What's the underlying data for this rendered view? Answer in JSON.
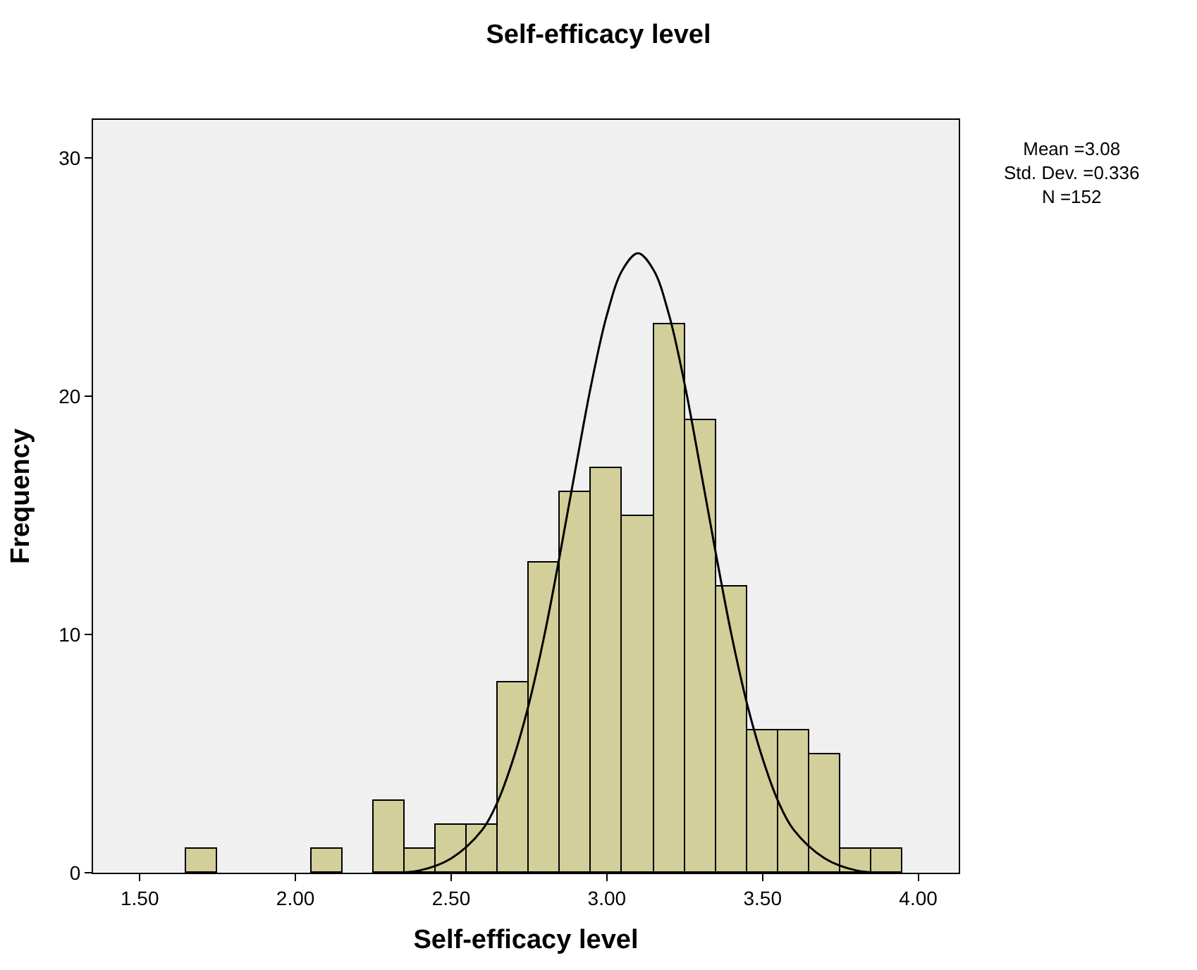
{
  "chart_data": {
    "type": "histogram",
    "title": "Self-efficacy level",
    "xlabel": "Self-efficacy level",
    "ylabel": "Frequency",
    "bins": [
      1.65,
      1.75,
      1.85,
      1.95,
      2.05,
      2.15,
      2.25,
      2.35,
      2.45,
      2.55,
      2.65,
      2.75,
      2.85,
      2.95,
      3.05,
      3.15,
      3.25,
      3.35,
      3.45,
      3.55,
      3.65,
      3.75,
      3.85,
      3.95
    ],
    "values": [
      1,
      0,
      0,
      0,
      1,
      0,
      3,
      1,
      2,
      2,
      8,
      13,
      16,
      17,
      15,
      23,
      19,
      12,
      6,
      6,
      5,
      1,
      1
    ],
    "color": "#d3cf9a",
    "series": [
      {
        "type": "line",
        "color": "#000000",
        "x": [
          2.3,
          2.4,
          2.5,
          2.6,
          2.65,
          2.7,
          2.75,
          2.8,
          2.85,
          2.9,
          2.95,
          3.0,
          3.05,
          3.1,
          3.15,
          3.2,
          3.25,
          3.3,
          3.35,
          3.4,
          3.45,
          3.5,
          3.55,
          3.6,
          3.7,
          3.8,
          3.9
        ],
        "values": [
          0.0,
          0.1,
          0.6,
          1.8,
          3.0,
          4.8,
          7.1,
          10.0,
          13.4,
          17.0,
          20.5,
          23.4,
          25.3,
          26.0,
          25.3,
          23.4,
          20.5,
          17.0,
          13.4,
          10.0,
          7.1,
          4.8,
          3.0,
          1.8,
          0.6,
          0.1,
          0.0
        ]
      }
    ],
    "xlim": [
      1.35,
      4.13
    ],
    "xticks": [
      {
        "value": 1.5,
        "label": "1.50"
      },
      {
        "value": 2.0,
        "label": "2.00"
      },
      {
        "value": 2.5,
        "label": "2.50"
      },
      {
        "value": 3.0,
        "label": "3.00"
      },
      {
        "value": 3.5,
        "label": "3.50"
      },
      {
        "value": 4.0,
        "label": "4.00"
      }
    ],
    "ylim": [
      0,
      31.6
    ],
    "yticks": [
      0,
      10,
      20,
      30
    ],
    "grid": false,
    "annotations": [
      "Mean =3.08\nStd. Dev. =0.336\nN =152"
    ]
  }
}
